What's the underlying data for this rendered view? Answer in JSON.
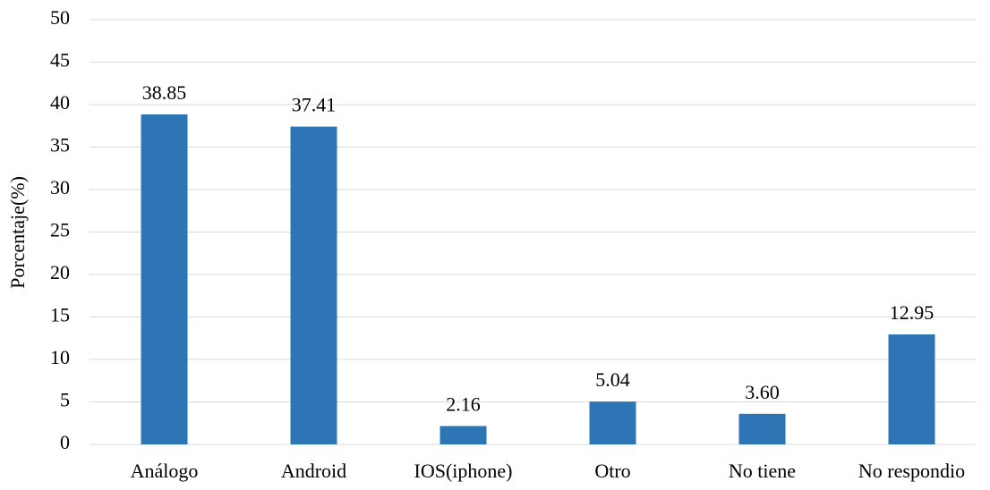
{
  "chart_data": {
    "type": "bar",
    "ylabel": "Porcentaje(%)",
    "categories": [
      "Análogo",
      "Android",
      "IOS(iphone)",
      "Otro",
      "No tiene",
      "No respondio"
    ],
    "values": [
      38.85,
      37.41,
      2.16,
      5.04,
      3.6,
      12.95
    ],
    "value_labels": [
      "38.85",
      "37.41",
      "2.16",
      "5.04",
      "3.60",
      "12.95"
    ],
    "color": "#2e75b6",
    "ylim": [
      0,
      50
    ],
    "yticks": [
      0,
      5,
      10,
      15,
      20,
      25,
      30,
      35,
      40,
      45,
      50
    ],
    "grid": true
  }
}
